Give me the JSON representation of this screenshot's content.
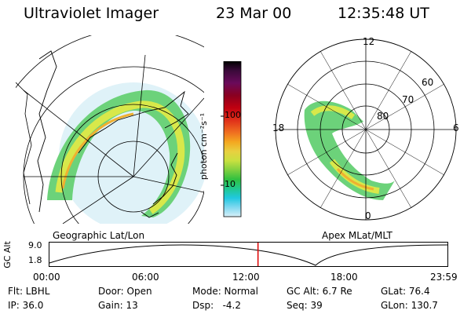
{
  "header": {
    "instrument": "Ultraviolet Imager",
    "date": "23 Mar 00",
    "time": "12:35:48 UT"
  },
  "geo_panel": {
    "label": "Geographic Lat/Lon"
  },
  "polar_panel": {
    "label": "Apex MLat/MLT",
    "mlt_labels": [
      "12",
      "18",
      "6",
      "0"
    ],
    "lat_labels": [
      "60",
      "70",
      "80"
    ]
  },
  "colorbar": {
    "unit_label": "photon cm⁻²s⁻¹",
    "ticks": [
      "100",
      "10"
    ],
    "colors": [
      "#000000",
      "#3a0a3a",
      "#6a0a5a",
      "#8a0020",
      "#c00010",
      "#e0301a",
      "#f07020",
      "#f4a820",
      "#e8d040",
      "#c8e040",
      "#80d040",
      "#30c040",
      "#20c890",
      "#20c8e0",
      "#80d8f0",
      "#d8f0f8"
    ]
  },
  "timeline": {
    "axis_label": "GC Alt",
    "y_ticks": [
      "9.0",
      "1.8"
    ],
    "x_ticks": [
      "00:00",
      "06:00",
      "12:00",
      "18:00",
      "23:59"
    ],
    "current_time_fraction": 0.524,
    "marker_color": "#dd0000"
  },
  "status": {
    "flt": "Flt: LBHL",
    "ip": "IP: 36.0",
    "door": "Door: Open",
    "gain": "Gain: 13",
    "mode": "Mode: Normal",
    "dsp": "Dsp:   -4.2",
    "gc_alt": "GC Alt: 6.7 Re",
    "seq": "Seq: 39",
    "glat": "GLat: 76.4",
    "glon": "GLon: 130.7"
  }
}
